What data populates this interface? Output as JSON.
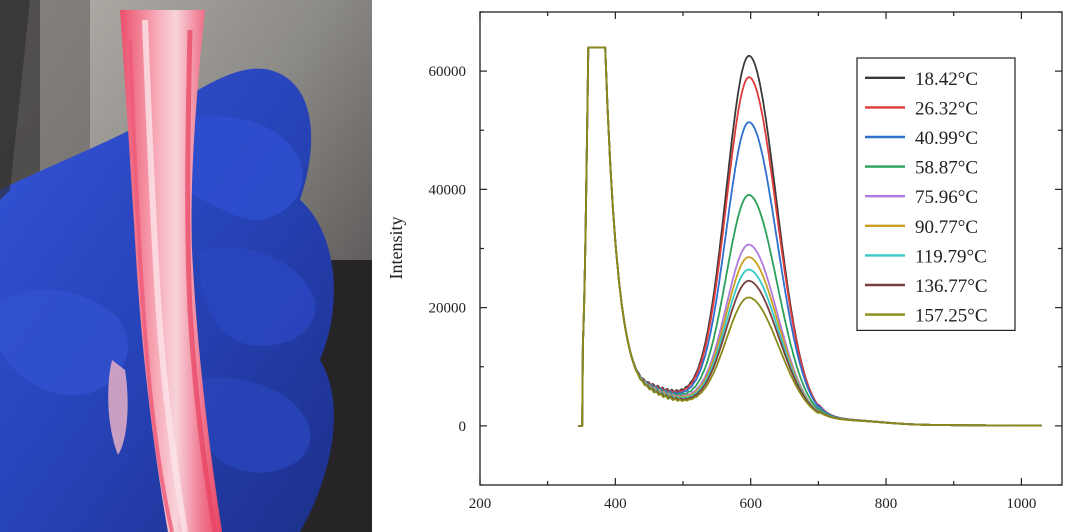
{
  "photo": {
    "description": "photo-of-fluorescent-fibers",
    "colors": {
      "background_light": "#9a9690",
      "background_dark": "#2c2a2c",
      "glove_blue": "#2a49c8",
      "fiber_pink": "#f0607a",
      "fiber_light": "#f6c6cf"
    }
  },
  "chart_data": {
    "type": "line",
    "title": "",
    "xlabel": "",
    "ylabel": "Intensity",
    "xlim": [
      200,
      1060
    ],
    "ylim": [
      -10000,
      70000
    ],
    "xticks": [
      200,
      400,
      600,
      800,
      1000
    ],
    "yticks": [
      0,
      20000,
      40000,
      60000
    ],
    "grid": false,
    "legend_position": "top-right",
    "excitation_peak": {
      "x_start": 360,
      "x_end": 385,
      "saturated_value": 64000
    },
    "series": [
      {
        "name": "18.42°C",
        "color": "#3a3a3a",
        "peak_x": 598,
        "peak": 63000
      },
      {
        "name": "26.32°C",
        "color": "#e03a3a",
        "peak_x": 598,
        "peak": 59500
      },
      {
        "name": "40.99°C",
        "color": "#2f6fce",
        "peak_x": 598,
        "peak": 52000
      },
      {
        "name": "58.87°C",
        "color": "#2aa05a",
        "peak_x": 598,
        "peak": 39800
      },
      {
        "name": "75.96°C",
        "color": "#b07ae0",
        "peak_x": 598,
        "peak": 31500
      },
      {
        "name": "90.77°C",
        "color": "#c9a020",
        "peak_x": 598,
        "peak": 29500
      },
      {
        "name": "119.79°C",
        "color": "#38c8c8",
        "peak_x": 598,
        "peak": 27500
      },
      {
        "name": "136.77°C",
        "color": "#7a3f3f",
        "peak_x": 598,
        "peak": 25700
      },
      {
        "name": "157.25°C",
        "color": "#8a8a18",
        "peak_x": 598,
        "peak": 23000
      }
    ]
  }
}
